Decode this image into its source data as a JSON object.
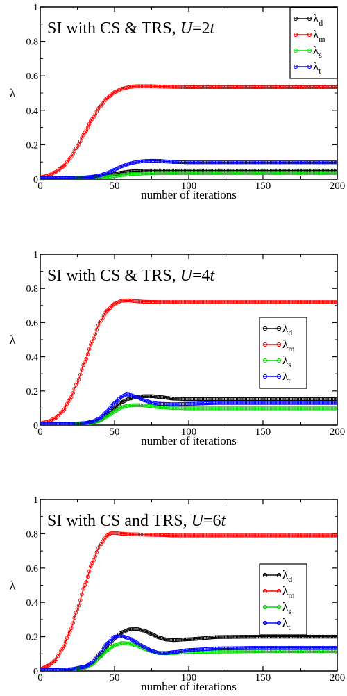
{
  "chart_data": [
    {
      "type": "line",
      "title": "SI with CS & TRS, U=2t",
      "title_parts": {
        "prefix": "SI with CS & TRS, ",
        "italic": "U",
        "mid": "=2",
        "italic2": "t"
      },
      "xlabel": "number of iterations",
      "ylabel": "λ",
      "xlim": [
        0,
        200
      ],
      "ylim": [
        0,
        1
      ],
      "xticks": [
        "0",
        "50",
        "100",
        "150",
        "200"
      ],
      "yticks": [
        "0",
        "0.2",
        "0.4",
        "0.6",
        "0.8",
        "1"
      ],
      "legend_position": "top-right",
      "series": [
        {
          "name": "λd",
          "base": "λ",
          "sub": "d",
          "color": "#000000",
          "x": [
            0,
            10,
            20,
            30,
            35,
            40,
            45,
            50,
            55,
            60,
            65,
            70,
            75,
            80,
            90,
            100,
            120,
            150,
            200
          ],
          "y": [
            0.005,
            0.005,
            0.006,
            0.008,
            0.01,
            0.015,
            0.022,
            0.03,
            0.038,
            0.044,
            0.047,
            0.049,
            0.05,
            0.05,
            0.05,
            0.05,
            0.05,
            0.05,
            0.05
          ]
        },
        {
          "name": "λm",
          "base": "λ",
          "sub": "m",
          "color": "#ff0000",
          "x": [
            0,
            5,
            10,
            15,
            20,
            25,
            30,
            35,
            40,
            45,
            50,
            55,
            60,
            65,
            70,
            75,
            80,
            90,
            100,
            120,
            150,
            200
          ],
          "y": [
            0.01,
            0.02,
            0.04,
            0.07,
            0.12,
            0.19,
            0.27,
            0.35,
            0.42,
            0.47,
            0.505,
            0.525,
            0.535,
            0.54,
            0.54,
            0.54,
            0.538,
            0.536,
            0.535,
            0.535,
            0.535,
            0.535
          ]
        },
        {
          "name": "λs",
          "base": "λ",
          "sub": "s",
          "color": "#00dd00",
          "x": [
            0,
            10,
            20,
            30,
            35,
            40,
            45,
            50,
            55,
            60,
            65,
            70,
            75,
            80,
            90,
            100,
            120,
            150,
            200
          ],
          "y": [
            0.002,
            0.002,
            0.003,
            0.004,
            0.006,
            0.009,
            0.013,
            0.018,
            0.024,
            0.028,
            0.031,
            0.033,
            0.034,
            0.035,
            0.035,
            0.035,
            0.035,
            0.035,
            0.035
          ]
        },
        {
          "name": "λt",
          "base": "λ",
          "sub": "t",
          "color": "#0000ff",
          "x": [
            0,
            10,
            20,
            30,
            35,
            40,
            45,
            50,
            55,
            60,
            65,
            70,
            75,
            80,
            85,
            90,
            100,
            120,
            150,
            200
          ],
          "y": [
            0.005,
            0.005,
            0.007,
            0.01,
            0.014,
            0.022,
            0.035,
            0.055,
            0.075,
            0.09,
            0.1,
            0.105,
            0.107,
            0.106,
            0.103,
            0.1,
            0.098,
            0.098,
            0.098,
            0.098
          ]
        }
      ]
    },
    {
      "type": "line",
      "title": "SI with CS & TRS, U=4t",
      "title_parts": {
        "prefix": "SI with CS & TRS, ",
        "italic": "U",
        "mid": "=4",
        "italic2": "t"
      },
      "xlabel": "number of iterations",
      "ylabel": "λ",
      "xlim": [
        0,
        200
      ],
      "ylim": [
        0,
        1
      ],
      "xticks": [
        "0",
        "50",
        "100",
        "150",
        "200"
      ],
      "yticks": [
        "0",
        "0.2",
        "0.4",
        "0.6",
        "0.8",
        "1"
      ],
      "legend_position": "right",
      "series": [
        {
          "name": "λd",
          "base": "λ",
          "sub": "d",
          "color": "#000000",
          "x": [
            0,
            10,
            20,
            30,
            35,
            40,
            45,
            50,
            55,
            60,
            65,
            70,
            75,
            80,
            90,
            100,
            120,
            150,
            200
          ],
          "y": [
            0.005,
            0.005,
            0.007,
            0.01,
            0.015,
            0.03,
            0.06,
            0.1,
            0.135,
            0.155,
            0.165,
            0.17,
            0.17,
            0.165,
            0.155,
            0.152,
            0.152,
            0.152,
            0.152
          ]
        },
        {
          "name": "λm",
          "base": "λ",
          "sub": "m",
          "color": "#ff0000",
          "x": [
            0,
            5,
            10,
            15,
            20,
            25,
            30,
            35,
            40,
            45,
            50,
            55,
            60,
            65,
            70,
            80,
            90,
            100,
            120,
            150,
            200
          ],
          "y": [
            0.01,
            0.02,
            0.04,
            0.08,
            0.15,
            0.25,
            0.37,
            0.49,
            0.6,
            0.67,
            0.71,
            0.728,
            0.73,
            0.725,
            0.722,
            0.72,
            0.72,
            0.72,
            0.72,
            0.72,
            0.72
          ]
        },
        {
          "name": "λs",
          "base": "λ",
          "sub": "s",
          "color": "#00dd00",
          "x": [
            0,
            10,
            20,
            30,
            35,
            40,
            45,
            50,
            55,
            60,
            65,
            70,
            75,
            80,
            90,
            100,
            120,
            150,
            200
          ],
          "y": [
            0.003,
            0.003,
            0.004,
            0.007,
            0.012,
            0.025,
            0.05,
            0.08,
            0.105,
            0.115,
            0.117,
            0.115,
            0.11,
            0.105,
            0.1,
            0.098,
            0.098,
            0.098,
            0.098
          ]
        },
        {
          "name": "λt",
          "base": "λ",
          "sub": "t",
          "color": "#0000ff",
          "x": [
            0,
            10,
            20,
            30,
            35,
            40,
            45,
            50,
            55,
            58,
            60,
            65,
            70,
            75,
            80,
            90,
            100,
            120,
            150,
            200
          ],
          "y": [
            0.005,
            0.005,
            0.007,
            0.012,
            0.02,
            0.04,
            0.08,
            0.13,
            0.168,
            0.18,
            0.178,
            0.165,
            0.145,
            0.132,
            0.125,
            0.122,
            0.125,
            0.13,
            0.13,
            0.13
          ]
        }
      ]
    },
    {
      "type": "line",
      "title": "SI with CS and TRS, U=6t",
      "title_parts": {
        "prefix": "SI with CS and TRS, ",
        "italic": "U",
        "mid": "=6",
        "italic2": "t"
      },
      "xlabel": "number of iterations",
      "ylabel": "λ",
      "xlim": [
        0,
        200
      ],
      "ylim": [
        0,
        1
      ],
      "xticks": [
        "0",
        "50",
        "100",
        "150",
        "200"
      ],
      "yticks": [
        "0",
        "0.2",
        "0.4",
        "0.6",
        "0.8",
        "1"
      ],
      "legend_position": "right",
      "series": [
        {
          "name": "λd",
          "base": "λ",
          "sub": "d",
          "color": "#000000",
          "x": [
            0,
            10,
            20,
            30,
            35,
            40,
            45,
            50,
            55,
            60,
            65,
            70,
            75,
            80,
            85,
            90,
            100,
            120,
            150,
            200
          ],
          "y": [
            0.005,
            0.006,
            0.01,
            0.02,
            0.04,
            0.08,
            0.14,
            0.19,
            0.225,
            0.243,
            0.245,
            0.235,
            0.215,
            0.195,
            0.183,
            0.18,
            0.185,
            0.198,
            0.2,
            0.2
          ]
        },
        {
          "name": "λm",
          "base": "λ",
          "sub": "m",
          "color": "#ff0000",
          "x": [
            0,
            5,
            10,
            15,
            20,
            25,
            30,
            35,
            40,
            45,
            48,
            50,
            55,
            60,
            70,
            80,
            90,
            100,
            120,
            150,
            200
          ],
          "y": [
            0.01,
            0.03,
            0.06,
            0.13,
            0.23,
            0.36,
            0.5,
            0.63,
            0.73,
            0.79,
            0.805,
            0.805,
            0.8,
            0.797,
            0.795,
            0.793,
            0.79,
            0.79,
            0.79,
            0.79,
            0.79
          ]
        },
        {
          "name": "λs",
          "base": "λ",
          "sub": "s",
          "color": "#00dd00",
          "x": [
            0,
            10,
            20,
            30,
            35,
            40,
            45,
            50,
            55,
            60,
            65,
            70,
            75,
            80,
            85,
            90,
            100,
            120,
            150,
            200
          ],
          "y": [
            0.003,
            0.004,
            0.008,
            0.02,
            0.04,
            0.08,
            0.12,
            0.15,
            0.163,
            0.16,
            0.148,
            0.13,
            0.115,
            0.105,
            0.103,
            0.105,
            0.11,
            0.113,
            0.115,
            0.115
          ]
        },
        {
          "name": "λt",
          "base": "λ",
          "sub": "t",
          "color": "#0000ff",
          "x": [
            0,
            10,
            20,
            30,
            35,
            40,
            45,
            50,
            55,
            60,
            65,
            70,
            75,
            80,
            85,
            90,
            100,
            120,
            150,
            200
          ],
          "y": [
            0.005,
            0.006,
            0.01,
            0.025,
            0.05,
            0.1,
            0.16,
            0.2,
            0.203,
            0.19,
            0.165,
            0.14,
            0.118,
            0.105,
            0.105,
            0.11,
            0.122,
            0.132,
            0.135,
            0.135
          ]
        }
      ]
    }
  ]
}
